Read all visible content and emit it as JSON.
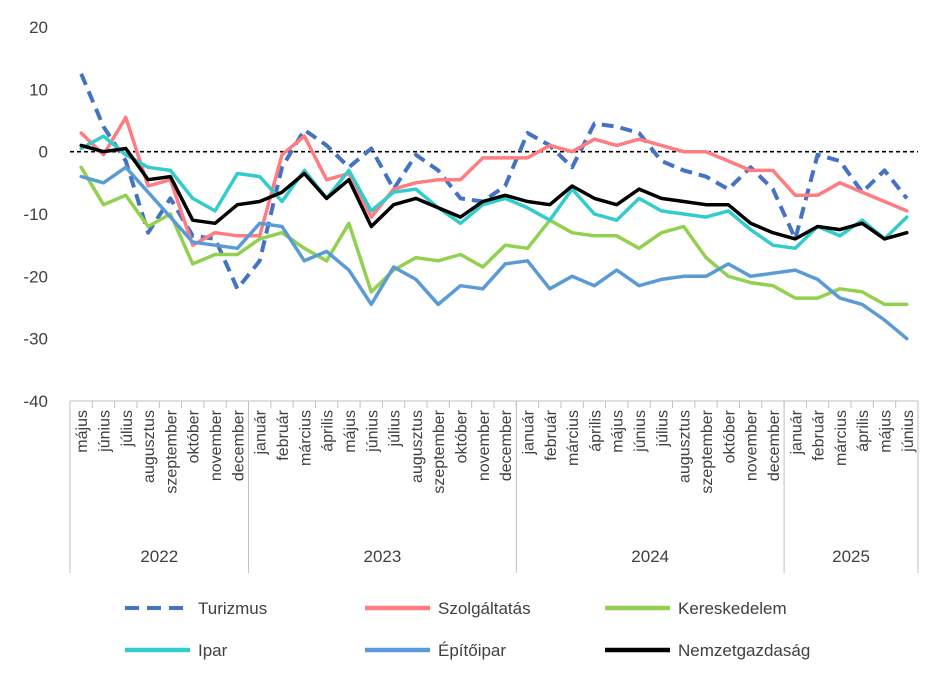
{
  "chart_data": {
    "type": "line",
    "title": "",
    "xlabel": "",
    "ylabel": "",
    "ylim": [
      -40,
      20
    ],
    "yticks": [
      20,
      10,
      0,
      -10,
      -20,
      -30,
      -40
    ],
    "grid": false,
    "legend_position": "bottom",
    "months": [
      "május",
      "június",
      "július",
      "augusztus",
      "szeptember",
      "október",
      "november",
      "december",
      "január",
      "február",
      "március",
      "április",
      "május",
      "június",
      "július",
      "augusztus",
      "szeptember",
      "október",
      "november",
      "december",
      "január",
      "február",
      "március",
      "április",
      "május",
      "június",
      "július",
      "augusztus",
      "szeptember",
      "október",
      "november",
      "december",
      "január",
      "február",
      "március",
      "április",
      "május",
      "június"
    ],
    "years": [
      {
        "label": "2022",
        "start": 0,
        "end": 7
      },
      {
        "label": "2023",
        "start": 8,
        "end": 19
      },
      {
        "label": "2024",
        "start": 20,
        "end": 31
      },
      {
        "label": "2025",
        "start": 32,
        "end": 37
      }
    ],
    "series": [
      {
        "name": "Turizmus",
        "color": "#4472C4",
        "dashed": true,
        "values": [
          12.5,
          4,
          -1.5,
          -13,
          -7.5,
          -13.5,
          -14,
          -22,
          -17.5,
          -2.5,
          3.5,
          1,
          -2.5,
          0.5,
          -6,
          -0.5,
          -3,
          -7.5,
          -8,
          -5.5,
          3,
          1,
          -2.5,
          4.5,
          4,
          3,
          -1.5,
          -3,
          -4,
          -6,
          -2.5,
          -6,
          -14,
          -0.5,
          -1.5,
          -6.5,
          -3,
          -7.5
        ]
      },
      {
        "name": "Szolgáltatás",
        "color": "#FF7C80",
        "dashed": false,
        "values": [
          3,
          -0.5,
          5.5,
          -5.5,
          -4.5,
          -15,
          -13,
          -13.5,
          -13.5,
          -0.5,
          2.5,
          -4.5,
          -3.5,
          -10.5,
          -6,
          -5,
          -4.5,
          -4.5,
          -1,
          -1,
          -1,
          1,
          0,
          2,
          1,
          2,
          1,
          0,
          0,
          -1.5,
          -3,
          -3,
          -7,
          -7,
          -5,
          -6.5,
          -8,
          -9.5
        ]
      },
      {
        "name": "Kereskedelem",
        "color": "#92D050",
        "dashed": false,
        "values": [
          -2.5,
          -8.5,
          -7,
          -12,
          -10,
          -18,
          -16.5,
          -16.5,
          -14,
          -13,
          -15.5,
          -17.5,
          -11.5,
          -22.5,
          -19,
          -17,
          -17.5,
          -16.5,
          -18.5,
          -15,
          -15.5,
          -11,
          -13,
          -13.5,
          -13.5,
          -15.5,
          -13,
          -12,
          -17,
          -20,
          -21,
          -21.5,
          -23.5,
          -23.5,
          -22,
          -22.5,
          -24.5,
          -24.5
        ]
      },
      {
        "name": "Ipar",
        "color": "#33CCCC",
        "dashed": false,
        "values": [
          0.5,
          2.5,
          -0.5,
          -2.5,
          -3,
          -7.5,
          -9.5,
          -3.5,
          -4,
          -8,
          -3,
          -7.5,
          -3,
          -9.5,
          -6.5,
          -6,
          -9,
          -11.5,
          -8.5,
          -7.5,
          -9,
          -11,
          -6,
          -10,
          -11,
          -7.5,
          -9.5,
          -10,
          -10.5,
          -9.5,
          -12.5,
          -15,
          -15.5,
          -12,
          -13.5,
          -11,
          -14,
          -10.5
        ]
      },
      {
        "name": "Építőipar",
        "color": "#5B9BD5",
        "dashed": false,
        "values": [
          -4,
          -5,
          -2.5,
          -6.5,
          -10.5,
          -14.5,
          -15,
          -15.5,
          -11.5,
          -12,
          -17.5,
          -16,
          -19,
          -24.5,
          -18.5,
          -20.5,
          -24.5,
          -21.5,
          -22,
          -18,
          -17.5,
          -22,
          -20,
          -21.5,
          -19,
          -21.5,
          -20.5,
          -20,
          -20,
          -18,
          -20,
          -19.5,
          -19,
          -20.5,
          -23.5,
          -24.5,
          -27,
          -30
        ]
      },
      {
        "name": "Nemzetgazdaság",
        "color": "#000000",
        "dashed": false,
        "values": [
          1,
          0,
          0.5,
          -4.5,
          -4,
          -11,
          -11.5,
          -8.5,
          -8,
          -6.5,
          -3.5,
          -7.5,
          -4.5,
          -12,
          -8.5,
          -7.5,
          -9,
          -10.5,
          -8,
          -7,
          -8,
          -8.5,
          -5.5,
          -7.5,
          -8.5,
          -6,
          -7.5,
          -8,
          -8.5,
          -8.5,
          -11.5,
          -13,
          -14,
          -12,
          -12.5,
          -11.5,
          -14,
          -13
        ]
      }
    ]
  }
}
